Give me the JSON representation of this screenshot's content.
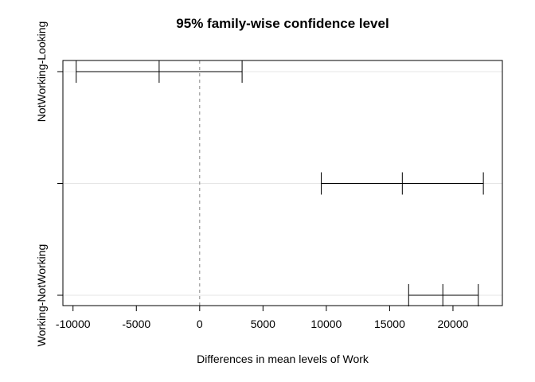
{
  "chart_data": {
    "type": "errorbar",
    "title": "95% family-wise confidence level",
    "xlabel": "Differences in mean levels of Work",
    "ylabel": "",
    "xlim": [
      -10800,
      23900
    ],
    "xticks": [
      -10000,
      -5000,
      0,
      5000,
      10000,
      15000,
      20000
    ],
    "xtick_labels": [
      "-10000",
      "-5000",
      "0",
      "5000",
      "10000",
      "15000",
      "20000"
    ],
    "grid": true,
    "reference_line": 0,
    "comparisons": [
      {
        "label": "NotWorking-Looking",
        "lwr": -9750,
        "diff": -3200,
        "upr": 3350
      },
      {
        "label": "",
        "lwr": 9600,
        "diff": 16000,
        "upr": 22400
      },
      {
        "label": "Working-NotWorking",
        "lwr": 16500,
        "diff": 19200,
        "upr": 22000
      }
    ]
  }
}
